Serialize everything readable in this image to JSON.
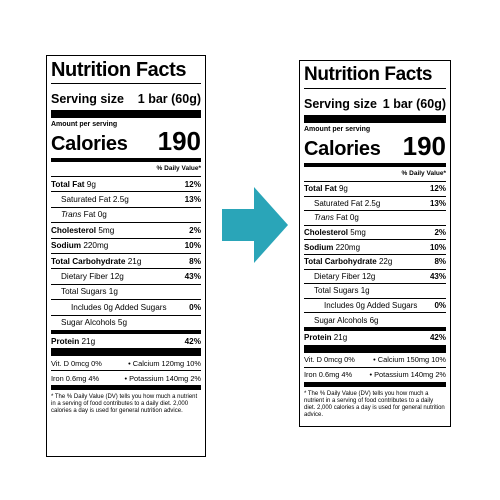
{
  "title": "Nutrition Facts",
  "serving_label": "Serving size",
  "serving_value": "1 bar (60g)",
  "amount_per_serving": "Amount per serving",
  "calories_label": "Calories",
  "dv_header": "% Daily Value*",
  "arrow_color": "#2aa5b8",
  "left": {
    "calories": "190",
    "total_fat": {
      "label": "Total Fat",
      "amount": "9g",
      "pct": "12%"
    },
    "sat_fat": {
      "label": "Saturated Fat 2.5g",
      "pct": "13%"
    },
    "trans_fat": {
      "label": "Trans",
      "rest": "Fat 0g"
    },
    "cholesterol": {
      "label": "Cholesterol",
      "amount": "5mg",
      "pct": "2%"
    },
    "sodium": {
      "label": "Sodium",
      "amount": "220mg",
      "pct": "10%"
    },
    "carb": {
      "label": "Total Carbohydrate",
      "amount": "21g",
      "pct": "8%"
    },
    "fiber": {
      "label": "Dietary Fiber 12g",
      "pct": "43%"
    },
    "sugars": {
      "label": "Total Sugars 1g"
    },
    "added_sugars": {
      "label": "Includes 0g Added Sugars",
      "pct": "0%"
    },
    "sugar_alcohols": {
      "label": "Sugar Alcohols 5g"
    },
    "protein": {
      "label": "Protein",
      "amount": "21g",
      "pct": "42%"
    },
    "vit_d": "Vit. D 0mcg 0%",
    "calcium": "Calcium 120mg 10%",
    "iron": "Iron 0.6mg 4%",
    "potassium": "Potassium 140mg 2%",
    "footnote": "* The % Daily Value (DV) tells you how much a nutrient in a serving of food contributes to a daily diet. 2,000 calories a day is used for general nutrition advice."
  },
  "right": {
    "calories": "190",
    "total_fat": {
      "label": "Total Fat",
      "amount": "9g",
      "pct": "12%"
    },
    "sat_fat": {
      "label": "Saturated Fat 2.5g",
      "pct": "13%"
    },
    "trans_fat": {
      "label": "Trans",
      "rest": "Fat 0g"
    },
    "cholesterol": {
      "label": "Cholesterol",
      "amount": "5mg",
      "pct": "2%"
    },
    "sodium": {
      "label": "Sodium",
      "amount": "220mg",
      "pct": "10%"
    },
    "carb": {
      "label": "Total Carbohydrate",
      "amount": "22g",
      "pct": "8%"
    },
    "fiber": {
      "label": "Dietary Fiber 12g",
      "pct": "43%"
    },
    "sugars": {
      "label": "Total Sugars 1g"
    },
    "added_sugars": {
      "label": "Includes 0g Added Sugars",
      "pct": "0%"
    },
    "sugar_alcohols": {
      "label": "Sugar Alcohols 6g"
    },
    "protein": {
      "label": "Protein",
      "amount": "21g",
      "pct": "42%"
    },
    "vit_d": "Vit. D 0mcg 0%",
    "calcium": "Calcium 150mg 10%",
    "iron": "Iron 0.6mg 4%",
    "potassium": "Potassium 140mg 2%",
    "footnote": "* The % Daily Value (DV) tells you how much a nutrient in a serving of food contributes to a daily diet. 2,000 calories a day is used for general nutrition advice."
  }
}
